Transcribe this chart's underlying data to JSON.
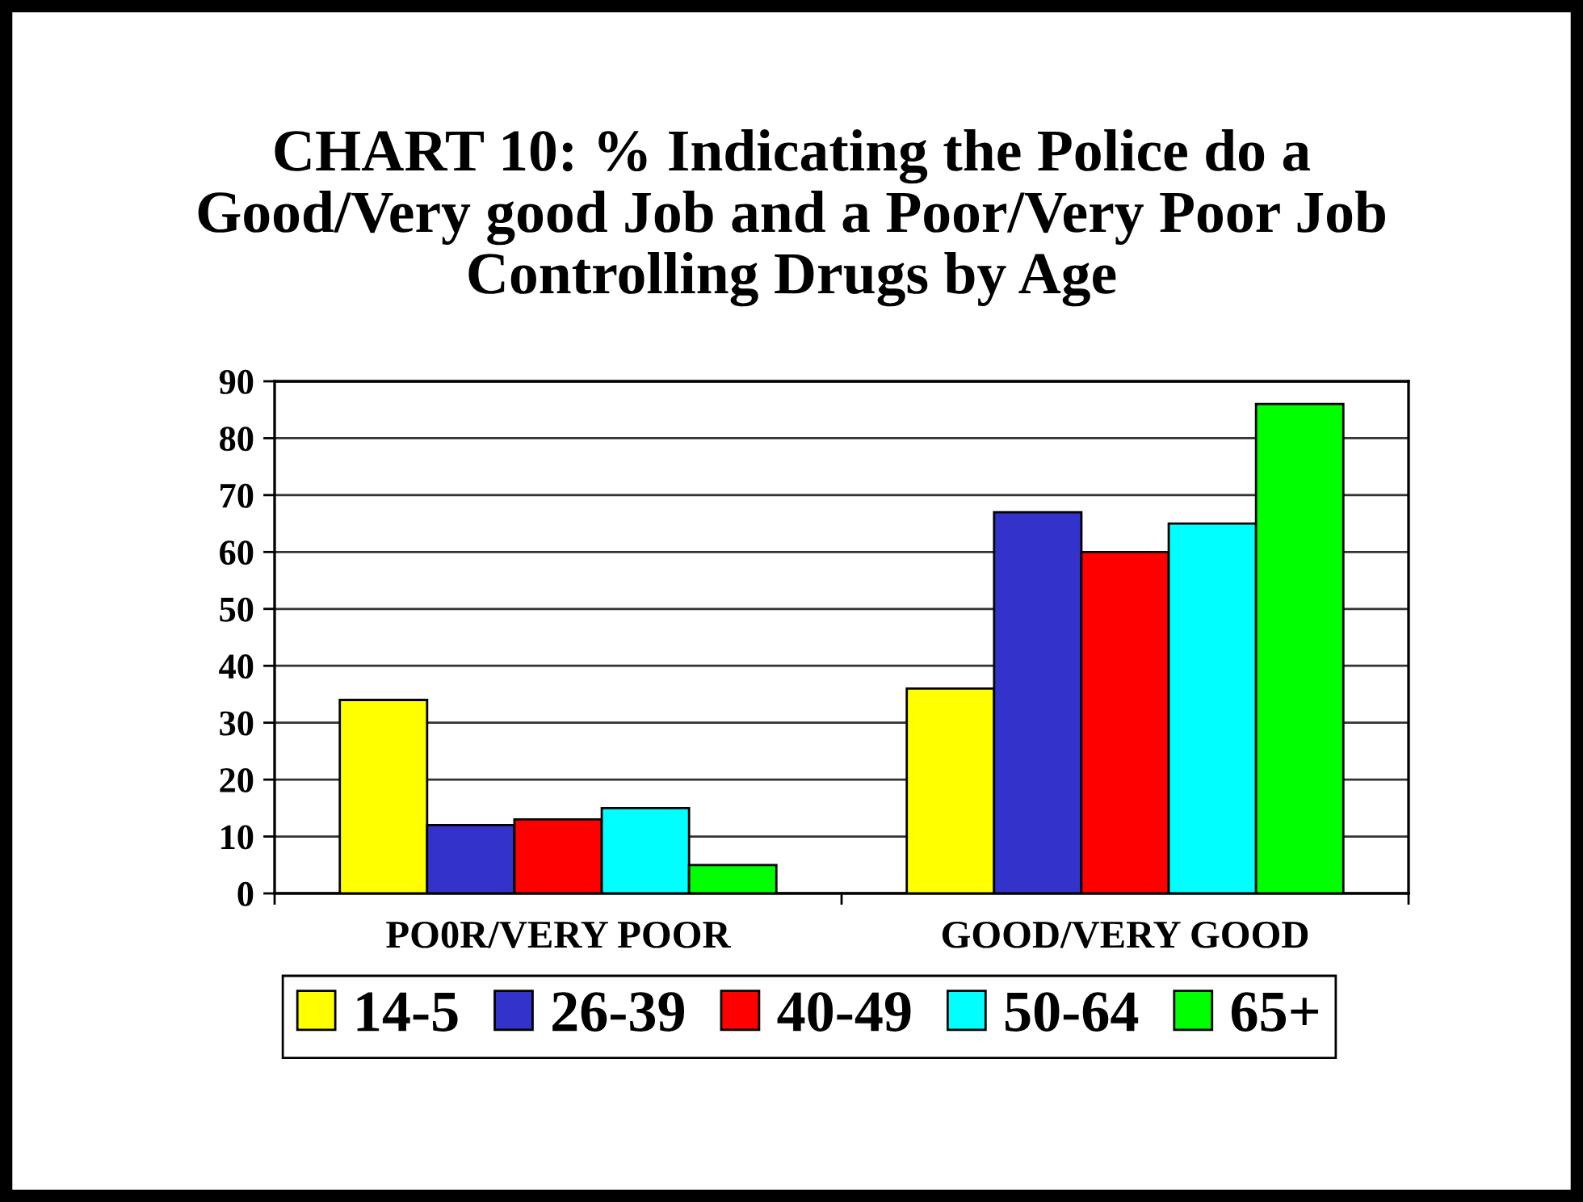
{
  "chart_data": {
    "type": "bar",
    "title": "CHART 10: % Indicating the Police do a\nGood/Very good Job and a Poor/Very Poor Job\nControlling Drugs by Age",
    "categories": [
      "PO0R/VERY POOR",
      "GOOD/VERY GOOD"
    ],
    "series": [
      {
        "name": "14-5",
        "color": "#ffff00",
        "values": [
          34,
          36
        ]
      },
      {
        "name": "26-39",
        "color": "#3333cc",
        "values": [
          12,
          67
        ]
      },
      {
        "name": "40-49",
        "color": "#ff0000",
        "values": [
          13,
          60
        ]
      },
      {
        "name": "50-64",
        "color": "#00ffff",
        "values": [
          15,
          65
        ]
      },
      {
        "name": "65+",
        "color": "#00ff00",
        "values": [
          5,
          86
        ]
      }
    ],
    "ylim": [
      0,
      90
    ],
    "yticks": [
      0,
      10,
      20,
      30,
      40,
      50,
      60,
      70,
      80,
      90
    ],
    "grid": "y",
    "legend": "bottom"
  }
}
